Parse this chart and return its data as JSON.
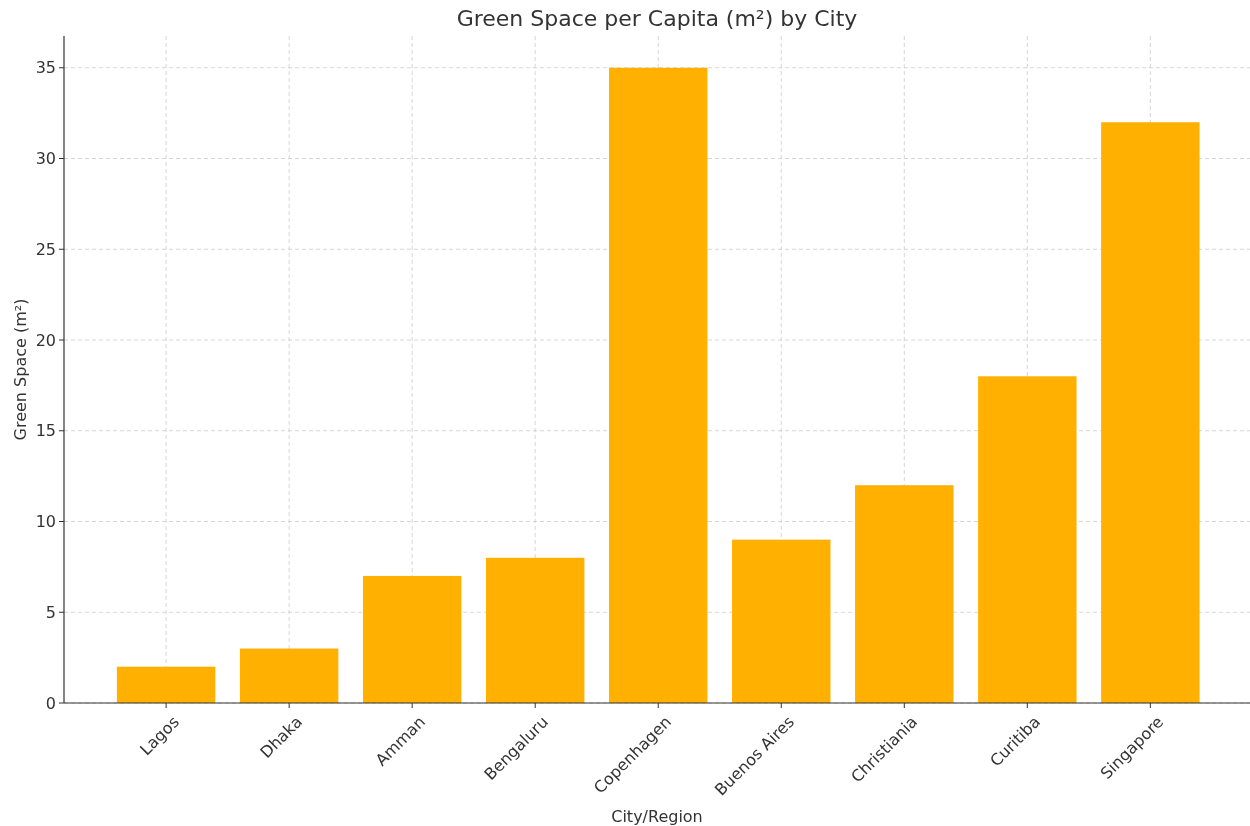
{
  "chart_data": {
    "type": "bar",
    "title": "Green Space per Capita (m²) by City",
    "xlabel": "City/Region",
    "ylabel": "Green Space (m²)",
    "categories": [
      "Lagos",
      "Dhaka",
      "Amman",
      "Bengaluru",
      "Copenhagen",
      "Buenos Aires",
      "Christiania",
      "Curitiba",
      "Singapore"
    ],
    "values": [
      2,
      3,
      7,
      8,
      35,
      9,
      12,
      18,
      32
    ],
    "color": "#ffb000",
    "ylim": [
      0,
      36.75
    ],
    "yticks": [
      0,
      5,
      10,
      15,
      20,
      25,
      30,
      35
    ],
    "grid": true
  }
}
